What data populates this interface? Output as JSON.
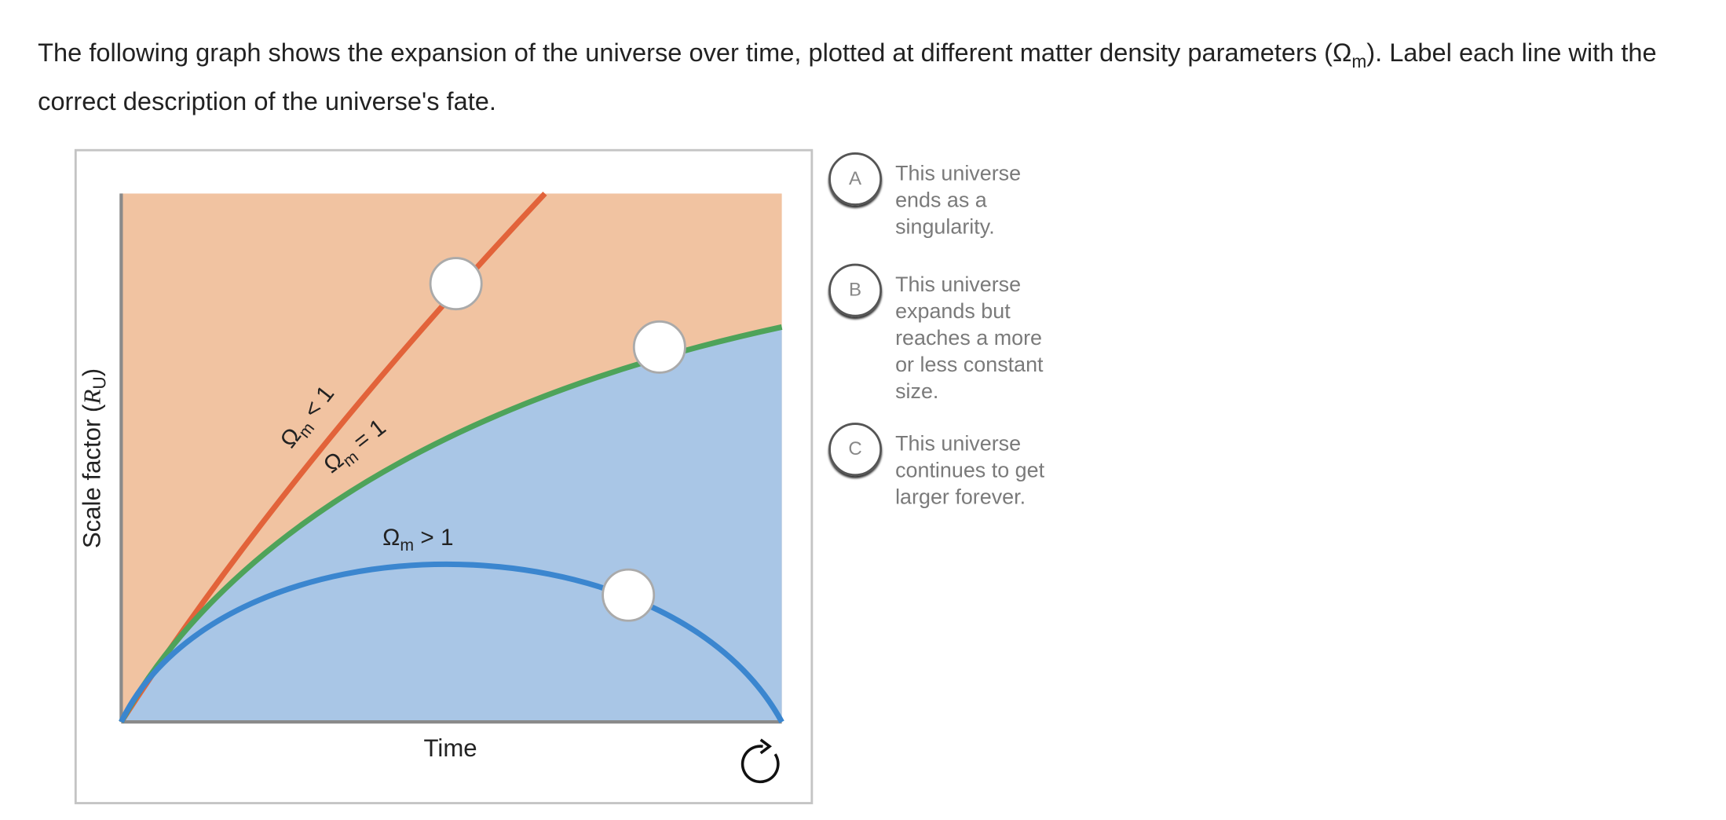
{
  "question": {
    "before": "The following graph shows the expansion of the universe over time, plotted at different matter density parameters (Ω",
    "sub": "m",
    "after": "). Label each line with the correct description of the universe's fate."
  },
  "graph": {
    "y_axis": {
      "open": "Scale factor (",
      "var": "R",
      "sub": "U",
      "close": ")"
    },
    "x_axis": "Time",
    "curves": [
      {
        "symbol": "Ω",
        "sub": "m",
        "relation": " < 1"
      },
      {
        "symbol": "Ω",
        "sub": "m",
        "relation": " = 1"
      },
      {
        "symbol": "Ω",
        "sub": "m",
        "relation": " > 1"
      }
    ]
  },
  "options": [
    {
      "letter": "A",
      "text": "This universe ends as a singularity."
    },
    {
      "letter": "B",
      "text": "This universe expands but reaches a more or less constant size."
    },
    {
      "letter": "C",
      "text": "This universe continues to get larger forever."
    }
  ]
}
